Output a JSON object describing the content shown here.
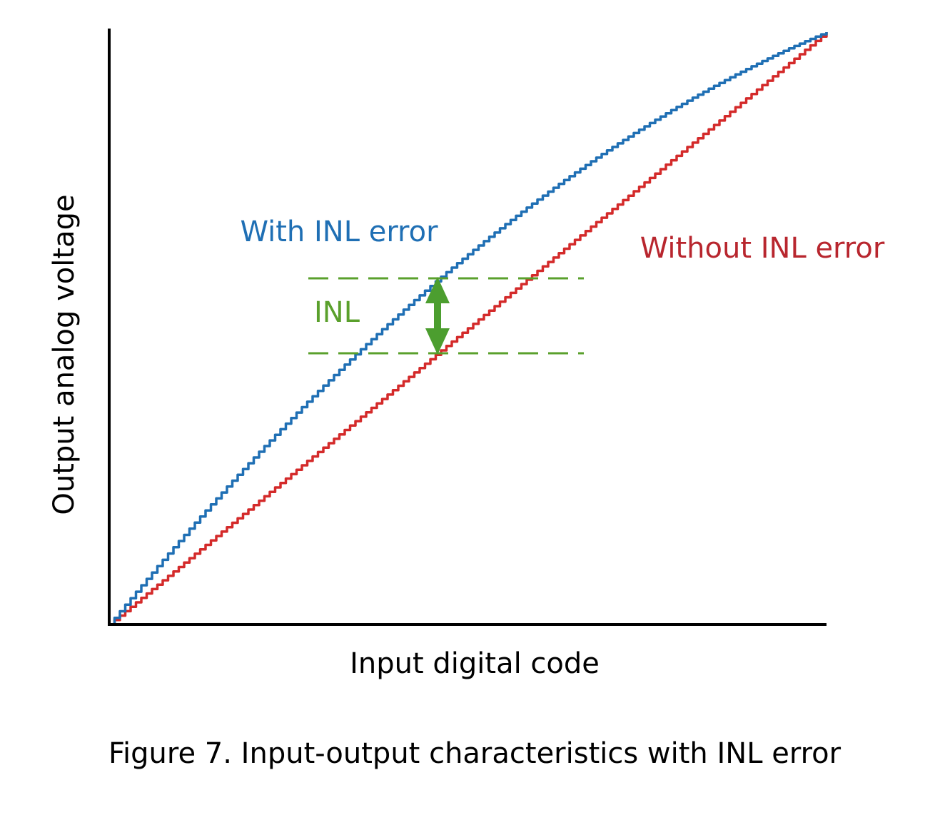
{
  "axes": {
    "y_label": "Output analog voltage",
    "x_label": "Input digital code"
  },
  "curves": {
    "with_inl": "With INL error",
    "without_inl": "Without INL error"
  },
  "marker": {
    "label": "INL"
  },
  "caption": "Figure 7. Input-output characteristics with INL error"
}
